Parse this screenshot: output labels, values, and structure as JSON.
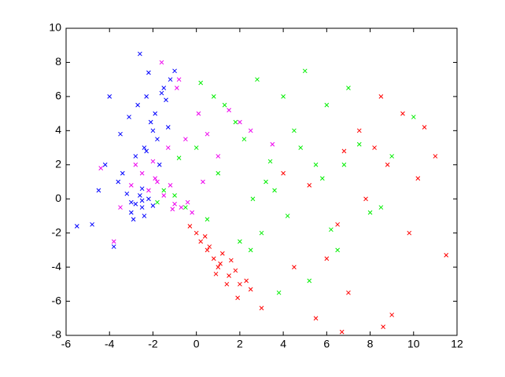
{
  "chart_data": {
    "type": "scatter",
    "marker": "x",
    "xlim": [
      -6,
      12
    ],
    "xticks": [
      -6,
      -4,
      -2,
      0,
      2,
      4,
      6,
      8,
      10,
      12
    ],
    "ylim": [
      -8,
      10
    ],
    "yticks": [
      -8,
      -6,
      -4,
      -2,
      0,
      2,
      4,
      6,
      8,
      10
    ],
    "grid": false,
    "series": [
      {
        "color": "#ff0000",
        "x": [
          0.2,
          0.5,
          0.8,
          1.0,
          1.2,
          1.5,
          1.8,
          2.0,
          2.3,
          0.0,
          -0.3,
          0.6,
          1.1,
          1.6,
          2.5,
          0.9,
          1.4,
          0.4,
          1.9,
          3.0,
          4.5,
          5.2,
          6.0,
          6.8,
          7.5,
          8.2,
          8.8,
          9.5,
          10.2,
          11.0,
          11.5,
          9.0,
          7.0,
          6.5,
          8.5,
          10.5,
          5.5,
          4.0,
          8.6,
          6.7,
          7.8,
          9.8
        ],
        "y": [
          -2.5,
          -3.0,
          -3.5,
          -4.0,
          -3.2,
          -4.5,
          -4.2,
          -5.0,
          -4.8,
          -2.0,
          -1.6,
          -2.8,
          -3.8,
          -3.6,
          -5.3,
          -4.4,
          -5.0,
          -2.2,
          -5.8,
          -6.4,
          -4.0,
          0.8,
          -3.5,
          2.8,
          4.0,
          3.0,
          2.0,
          5.0,
          1.2,
          2.5,
          -3.3,
          -6.8,
          -5.5,
          -1.5,
          6.0,
          4.2,
          -7.0,
          1.5,
          -7.5,
          -7.8,
          0.0,
          -2.0
        ]
      },
      {
        "color": "#00ee00",
        "x": [
          -1.5,
          -1.0,
          -0.5,
          0.2,
          0.8,
          1.3,
          1.8,
          2.2,
          2.8,
          3.2,
          3.6,
          4.0,
          4.5,
          5.0,
          5.5,
          6.0,
          6.5,
          7.0,
          7.5,
          8.0,
          9.0,
          10.0,
          0.5,
          -0.8,
          1.0,
          2.5,
          3.0,
          4.2,
          5.8,
          6.8,
          5.2,
          3.8,
          2.0,
          4.8,
          6.2,
          8.5,
          0.0,
          -1.8,
          2.6,
          3.4
        ],
        "y": [
          0.5,
          0.2,
          -0.5,
          6.8,
          6.0,
          5.5,
          4.5,
          3.5,
          7.0,
          1.0,
          0.5,
          6.0,
          4.0,
          7.5,
          2.0,
          5.5,
          -3.0,
          6.5,
          3.2,
          -0.8,
          2.5,
          4.8,
          -1.2,
          2.4,
          1.5,
          -3.0,
          -2.0,
          -1.0,
          1.2,
          2.0,
          -4.8,
          -5.5,
          -2.5,
          3.0,
          -1.8,
          -0.5,
          3.0,
          -0.2,
          0.0,
          2.2
        ]
      },
      {
        "color": "#0000ff",
        "x": [
          -2.8,
          -2.5,
          -2.2,
          -3.0,
          -2.6,
          -2.4,
          -3.2,
          -2.0,
          -2.7,
          -2.3,
          -1.9,
          -2.1,
          -1.5,
          -1.8,
          -2.4,
          -2.0,
          -1.2,
          -1.6,
          -2.8,
          -3.4,
          -3.6,
          -4.2,
          -4.5,
          -4.8,
          -3.8,
          -2.9,
          -1.7,
          -1.4,
          -2.2,
          -2.6,
          -3.1,
          -2.5,
          -5.5,
          -4.0,
          -3.5,
          -2.3,
          -1.0,
          -1.3,
          -2.5,
          -3.0
        ],
        "y": [
          -0.3,
          -0.5,
          0.0,
          -0.8,
          0.2,
          -1.0,
          0.3,
          -0.4,
          5.5,
          6.0,
          5.0,
          4.5,
          6.5,
          3.5,
          3.0,
          4.0,
          7.0,
          6.2,
          2.5,
          1.5,
          1.0,
          2.0,
          0.5,
          -1.5,
          -2.8,
          -1.2,
          2.0,
          5.8,
          7.4,
          8.5,
          4.8,
          -0.1,
          -1.6,
          6.0,
          3.8,
          2.8,
          7.5,
          4.2,
          0.6,
          -0.2
        ]
      },
      {
        "color": "#ee00ee",
        "x": [
          -2.2,
          -1.8,
          -1.5,
          -1.0,
          -0.7,
          -0.4,
          -0.2,
          -2.5,
          -3.0,
          -1.2,
          -0.9,
          0.1,
          0.5,
          1.5,
          2.0,
          -1.6,
          -2.8,
          -3.5,
          -4.4,
          -0.5,
          1.0,
          -1.3,
          -2.0,
          -0.8,
          2.5,
          3.5,
          -3.8,
          -1.1,
          0.3,
          -1.9
        ],
        "y": [
          0.5,
          1.0,
          0.2,
          -0.3,
          -0.5,
          -0.2,
          -0.8,
          1.5,
          0.8,
          0.8,
          6.5,
          5.0,
          3.8,
          5.2,
          4.5,
          8.0,
          2.0,
          -0.5,
          1.8,
          3.5,
          2.5,
          3.0,
          2.2,
          7.0,
          4.0,
          3.2,
          -2.5,
          -0.6,
          1.0,
          1.2
        ]
      }
    ]
  }
}
